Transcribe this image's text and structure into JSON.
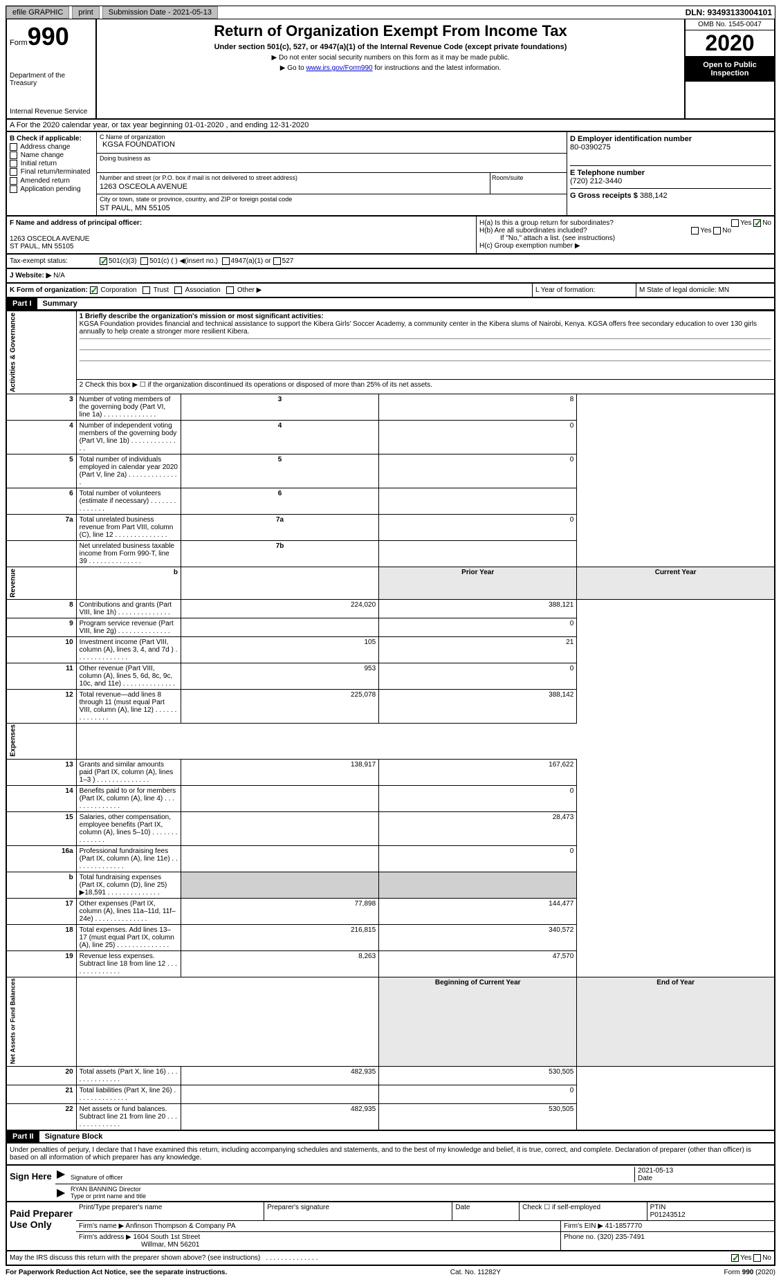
{
  "topbar": {
    "efile": "efile GRAPHIC",
    "print": "print",
    "sub_date_label": "Submission Date - 2021-05-13",
    "dln": "DLN: 93493133004101"
  },
  "header": {
    "form_prefix": "Form",
    "form_num": "990",
    "dept": "Department of the Treasury",
    "irs": "Internal Revenue Service",
    "title": "Return of Organization Exempt From Income Tax",
    "subtitle": "Under section 501(c), 527, or 4947(a)(1) of the Internal Revenue Code (except private foundations)",
    "note1": "▶ Do not enter social security numbers on this form as it may be made public.",
    "note2_pre": "▶ Go to ",
    "note2_link": "www.irs.gov/Form990",
    "note2_post": " for instructions and the latest information.",
    "omb": "OMB No. 1545-0047",
    "year": "2020",
    "inspect": "Open to Public Inspection"
  },
  "row_a": "A For the 2020 calendar year, or tax year beginning 01-01-2020     , and ending 12-31-2020",
  "box_b": {
    "label": "B Check if applicable:",
    "opts": [
      "Address change",
      "Name change",
      "Initial return",
      "Final return/terminated",
      "Amended return",
      "Application pending"
    ]
  },
  "box_c": {
    "name_label": "C Name of organization",
    "name": "KGSA FOUNDATION",
    "dba_label": "Doing business as",
    "addr_label": "Number and street (or P.O. box if mail is not delivered to street address)",
    "addr": "1263 OSCEOLA AVENUE",
    "room_label": "Room/suite",
    "city_label": "City or town, state or province, country, and ZIP or foreign postal code",
    "city": "ST PAUL, MN  55105"
  },
  "box_d": {
    "label": "D Employer identification number",
    "val": "80-0390275"
  },
  "box_e": {
    "label": "E Telephone number",
    "val": "(720) 212-3440"
  },
  "box_g": {
    "label": "G Gross receipts $",
    "val": "388,142"
  },
  "box_f": {
    "label": "F  Name and address of principal officer:",
    "addr1": "1263 OSCEOLA AVENUE",
    "addr2": "ST PAUL, MN  55105"
  },
  "box_h": {
    "ha": "H(a)  Is this a group return for subordinates?",
    "hb": "H(b)  Are all subordinates included?",
    "hb_note": "If \"No,\" attach a list. (see instructions)",
    "hc": "H(c)  Group exemption number ▶"
  },
  "tax_status": {
    "label": "Tax-exempt status:",
    "o1": "501(c)(3)",
    "o2": "501(c) (   ) ◀(insert no.)",
    "o3": "4947(a)(1) or",
    "o4": "527"
  },
  "website": {
    "label": "J   Website: ▶",
    "val": "N/A"
  },
  "row_k": {
    "label": "K Form of organization:",
    "o1": "Corporation",
    "o2": "Trust",
    "o3": "Association",
    "o4": "Other ▶",
    "l": "L Year of formation:",
    "m": "M State of legal domicile: MN"
  },
  "part1": {
    "hdr": "Part I",
    "title": "Summary",
    "line1_label": "1  Briefly describe the organization's mission or most significant activities:",
    "mission": "KGSA Foundation provides financial and technical assistance to support the Kibera Girls' Soccer Academy, a community center in the Kibera slums of Nairobi, Kenya. KGSA offers free secondary education to over 130 girls annually to help create a stronger more resilient Kibera.",
    "line2": "2   Check this box ▶ ☐  if the organization discontinued its operations or disposed of more than 25% of its net assets.",
    "rows_ag": [
      {
        "n": "3",
        "t": "Number of voting members of the governing body (Part VI, line 1a)",
        "b": "3",
        "v": "8"
      },
      {
        "n": "4",
        "t": "Number of independent voting members of the governing body (Part VI, line 1b)",
        "b": "4",
        "v": "0"
      },
      {
        "n": "5",
        "t": "Total number of individuals employed in calendar year 2020 (Part V, line 2a)",
        "b": "5",
        "v": "0"
      },
      {
        "n": "6",
        "t": "Total number of volunteers (estimate if necessary)",
        "b": "6",
        "v": ""
      },
      {
        "n": "7a",
        "t": "Total unrelated business revenue from Part VIII, column (C), line 12",
        "b": "7a",
        "v": "0"
      },
      {
        "n": "",
        "t": "Net unrelated business taxable income from Form 990-T, line 39",
        "b": "7b",
        "v": ""
      }
    ],
    "col_hdr_prior": "Prior Year",
    "col_hdr_curr": "Current Year",
    "rows_rev": [
      {
        "n": "8",
        "t": "Contributions and grants (Part VIII, line 1h)",
        "p": "224,020",
        "c": "388,121"
      },
      {
        "n": "9",
        "t": "Program service revenue (Part VIII, line 2g)",
        "p": "",
        "c": "0"
      },
      {
        "n": "10",
        "t": "Investment income (Part VIII, column (A), lines 3, 4, and 7d )",
        "p": "105",
        "c": "21"
      },
      {
        "n": "11",
        "t": "Other revenue (Part VIII, column (A), lines 5, 6d, 8c, 9c, 10c, and 11e)",
        "p": "953",
        "c": "0"
      },
      {
        "n": "12",
        "t": "Total revenue—add lines 8 through 11 (must equal Part VIII, column (A), line 12)",
        "p": "225,078",
        "c": "388,142"
      }
    ],
    "rows_exp": [
      {
        "n": "13",
        "t": "Grants and similar amounts paid (Part IX, column (A), lines 1–3 )",
        "p": "138,917",
        "c": "167,622"
      },
      {
        "n": "14",
        "t": "Benefits paid to or for members (Part IX, column (A), line 4)",
        "p": "",
        "c": "0"
      },
      {
        "n": "15",
        "t": "Salaries, other compensation, employee benefits (Part IX, column (A), lines 5–10)",
        "p": "",
        "c": "28,473"
      },
      {
        "n": "16a",
        "t": "Professional fundraising fees (Part IX, column (A), line 11e)",
        "p": "",
        "c": "0"
      },
      {
        "n": "b",
        "t": "Total fundraising expenses (Part IX, column (D), line 25) ▶18,591",
        "p": "SHADE",
        "c": "SHADE"
      },
      {
        "n": "17",
        "t": "Other expenses (Part IX, column (A), lines 11a–11d, 11f–24e)",
        "p": "77,898",
        "c": "144,477"
      },
      {
        "n": "18",
        "t": "Total expenses. Add lines 13–17 (must equal Part IX, column (A), line 25)",
        "p": "216,815",
        "c": "340,572"
      },
      {
        "n": "19",
        "t": "Revenue less expenses. Subtract line 18 from line 12",
        "p": "8,263",
        "c": "47,570"
      }
    ],
    "col_hdr_begin": "Beginning of Current Year",
    "col_hdr_end": "End of Year",
    "rows_net": [
      {
        "n": "20",
        "t": "Total assets (Part X, line 16)",
        "p": "482,935",
        "c": "530,505"
      },
      {
        "n": "21",
        "t": "Total liabilities (Part X, line 26)",
        "p": "",
        "c": "0"
      },
      {
        "n": "22",
        "t": "Net assets or fund balances. Subtract line 21 from line 20",
        "p": "482,935",
        "c": "530,505"
      }
    ],
    "vert_ag": "Activities & Governance",
    "vert_rev": "Revenue",
    "vert_exp": "Expenses",
    "vert_net": "Net Assets or Fund Balances"
  },
  "part2": {
    "hdr": "Part II",
    "title": "Signature Block",
    "declare": "Under penalties of perjury, I declare that I have examined this return, including accompanying schedules and statements, and to the best of my knowledge and belief, it is true, correct, and complete. Declaration of preparer (other than officer) is based on all information of which preparer has any knowledge."
  },
  "sign": {
    "here": "Sign Here",
    "sig_label": "Signature of officer",
    "date": "2021-05-13",
    "date_label": "Date",
    "name": "RYAN BANNING  Director",
    "name_label": "Type or print name and title"
  },
  "paid": {
    "label": "Paid Preparer Use Only",
    "r1c1": "Print/Type preparer's name",
    "r1c2": "Preparer's signature",
    "r1c3": "Date",
    "r1c4_label": "Check ☐ if self-employed",
    "r1c5_label": "PTIN",
    "r1c5": "P01243512",
    "r2_label": "Firm's name     ▶",
    "r2_val": "Anfinson Thompson & Company PA",
    "r2_ein_label": "Firm's EIN ▶",
    "r2_ein": "41-1857770",
    "r3_label": "Firm's address ▶",
    "r3_val": "1604 South 1st Street",
    "r3_city": "Willmar, MN  56201",
    "r3_phone_label": "Phone no.",
    "r3_phone": "(320) 235-7491"
  },
  "discuss": "May the IRS discuss this return with the preparer shown above? (see instructions)",
  "footer": {
    "left": "For Paperwork Reduction Act Notice, see the separate instructions.",
    "mid": "Cat. No. 11282Y",
    "right": "Form 990 (2020)"
  },
  "yn": {
    "yes": "Yes",
    "no": "No"
  }
}
